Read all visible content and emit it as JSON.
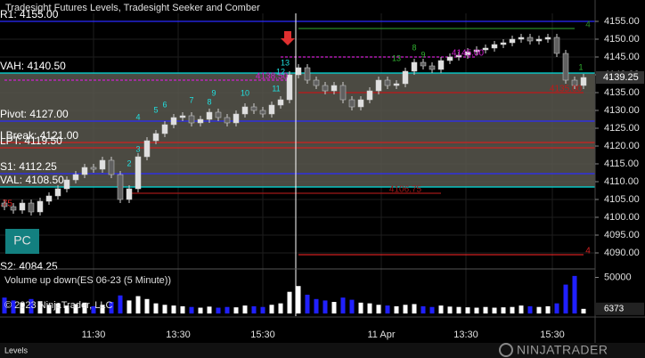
{
  "chart_data": {
    "type": "candlestick",
    "title": "Tradesight Futures Levels, Tradesight Seeker and Comber",
    "open": [
      4104,
      4103,
      4102,
      4104,
      4101.5,
      4104.5,
      4106,
      4108,
      4110.5,
      4112,
      4114,
      4113.5,
      4116,
      4112,
      4105,
      4108,
      4117,
      4121.5,
      4123.5,
      4126,
      4128,
      4128.5,
      4126.5,
      4127.5,
      4129.5,
      4128,
      4126.5,
      4129,
      4131,
      4130,
      4129,
      4131.5,
      4133,
      4140,
      4142,
      4138.5,
      4137,
      4135.5,
      4137,
      4133,
      4131,
      4133,
      4135.5,
      4138.5,
      4137,
      4137.5,
      4141,
      4143.5,
      4142.5,
      4141.5,
      4144,
      4145,
      4145.5,
      4146.5,
      4147,
      4147.5,
      4148.5,
      4149,
      4150,
      4150.5,
      4149.5,
      4150,
      4150.5,
      4146,
      4138.5,
      4137
    ],
    "high": [
      4105,
      4104,
      4105,
      4105,
      4105.5,
      4107,
      4109,
      4111.5,
      4113,
      4115,
      4115,
      4117,
      4117,
      4113,
      4109,
      4118,
      4122.5,
      4124.5,
      4127,
      4129,
      4129.5,
      4129.5,
      4128.5,
      4130.5,
      4130.5,
      4129,
      4130,
      4132,
      4132,
      4131,
      4132.5,
      4134,
      4141,
      4143,
      4143,
      4139.5,
      4138,
      4138,
      4138,
      4134,
      4134,
      4136.5,
      4139.5,
      4139.5,
      4138.5,
      4142,
      4144.5,
      4144.5,
      4143.5,
      4145,
      4146,
      4146.5,
      4147.5,
      4148,
      4148.5,
      4149.5,
      4150,
      4151,
      4151.5,
      4151.5,
      4151,
      4151.5,
      4151.5,
      4147,
      4139.5,
      4140.25
    ],
    "low": [
      4102,
      4101,
      4101,
      4100.5,
      4100.5,
      4103.5,
      4105,
      4107,
      4109.5,
      4111,
      4112.5,
      4112.5,
      4111,
      4104,
      4104,
      4107,
      4116,
      4120.5,
      4122.5,
      4125,
      4127,
      4125.5,
      4125.5,
      4126.5,
      4127,
      4125.5,
      4125.5,
      4128,
      4129,
      4128,
      4128,
      4130.5,
      4132,
      4139,
      4137.5,
      4136,
      4134.5,
      4134.5,
      4132,
      4130,
      4130,
      4132,
      4134.5,
      4136,
      4136,
      4136.5,
      4140,
      4141.5,
      4140.5,
      4140.5,
      4143,
      4144,
      4144.5,
      4145.5,
      4146,
      4146.5,
      4147.5,
      4148,
      4149,
      4148.5,
      4148.5,
      4149,
      4145,
      4137.5,
      4136,
      4136
    ],
    "close": [
      4103,
      4102,
      4104,
      4101.5,
      4104.5,
      4106,
      4108,
      4110.5,
      4112,
      4114,
      4113.5,
      4116,
      4112,
      4105,
      4108,
      4117,
      4121.5,
      4123.5,
      4126,
      4128,
      4128.5,
      4126.5,
      4127.5,
      4129.5,
      4128,
      4126.5,
      4129,
      4131,
      4130,
      4129,
      4131.5,
      4133,
      4140,
      4142,
      4138.5,
      4137,
      4135.5,
      4137,
      4133,
      4131,
      4133,
      4135.5,
      4138.5,
      4137,
      4137.5,
      4141,
      4143.5,
      4142.5,
      4141.5,
      4144,
      4145,
      4145.5,
      4146.5,
      4147,
      4147.5,
      4148.5,
      4149,
      4150,
      4150.5,
      4149.5,
      4150,
      4150.5,
      4146,
      4138.5,
      4137,
      4139.25
    ],
    "volume": [
      22000,
      18000,
      15000,
      20000,
      17000,
      12000,
      14000,
      11000,
      13000,
      15000,
      10000,
      12000,
      16000,
      25000,
      18000,
      24000,
      20000,
      14000,
      12000,
      11000,
      10000,
      9000,
      8000,
      9500,
      8000,
      9000,
      8500,
      11000,
      10000,
      9000,
      12000,
      14000,
      30000,
      38000,
      26000,
      20000,
      18000,
      16000,
      22000,
      19000,
      15000,
      14000,
      12000,
      11000,
      10000,
      12000,
      13000,
      10000,
      9000,
      11000,
      9500,
      9000,
      8500,
      8000,
      9000,
      8000,
      8500,
      9000,
      11000,
      10000,
      9000,
      10000,
      14000,
      40000,
      52000,
      6373
    ],
    "up_color": "#e0e0e0",
    "down_color": "#606060",
    "volume_up_color": "#ffffff",
    "volume_down_color": "#2020ff",
    "ylim": [
      4086,
      4157.25
    ],
    "yticks": [
      {
        "value": 4155,
        "label": "4155.00"
      },
      {
        "value": 4150,
        "label": "4150.00"
      },
      {
        "value": 4145,
        "label": "4145.00"
      },
      {
        "value": 4140,
        "label": "4140.00"
      },
      {
        "value": 4135,
        "label": "4135.00"
      },
      {
        "value": 4130,
        "label": "4130.00"
      },
      {
        "value": 4125,
        "label": "4125.00"
      },
      {
        "value": 4120,
        "label": "4120.00"
      },
      {
        "value": 4115,
        "label": "4115.00"
      },
      {
        "value": 4110,
        "label": "4110.00"
      },
      {
        "value": 4105,
        "label": "4105.00"
      },
      {
        "value": 4100,
        "label": "4100.00"
      },
      {
        "value": 4095,
        "label": "4095.00"
      },
      {
        "value": 4090,
        "label": "4090.00"
      }
    ],
    "volume_title": "Volume up down(ES 06-23 (5 Minute))",
    "volume_ylim": [
      0,
      58000
    ],
    "volume_yticks": [
      50000
    ],
    "time_ticks": [
      {
        "label": "11:30",
        "bar": 10
      },
      {
        "label": "13:30",
        "bar": 19.5
      },
      {
        "label": "15:30",
        "bar": 29
      },
      {
        "label": "11 Apr",
        "bar": 42.3
      },
      {
        "label": "13:30",
        "bar": 51.8
      },
      {
        "label": "15:30",
        "bar": 61.5
      }
    ],
    "grid": true,
    "levels": [
      {
        "label": "R1: 4155.00",
        "price": 4155,
        "color": "#2a2aff"
      },
      {
        "label": "VAH: 4140.50",
        "price": 4140.5,
        "color": "#00e0e0"
      },
      {
        "label": "Pivot: 4127.00",
        "price": 4127,
        "color": "#2a2aff"
      },
      {
        "label": "LBreak: 4121.00",
        "price": 4121,
        "color": "#d02020"
      },
      {
        "label": "LPT: 4119.50",
        "price": 4119.5,
        "color": "#d02020"
      },
      {
        "label": "S1: 4112.25",
        "price": 4112.25,
        "color": "#2a2aff"
      },
      {
        "label": "VAL: 4108.50",
        "price": 4108.5,
        "color": "#00e0e0"
      },
      {
        "label": "S2: 4084.25",
        "price": 4084.25,
        "color": "#2a2aff"
      }
    ],
    "value_area": {
      "from_level": 1,
      "to_level": 6,
      "color": "#58574e"
    },
    "segments": [
      {
        "price": 4138.5,
        "from": 0,
        "to": 32,
        "color": "#d020d0",
        "dashed": true,
        "label": "4138.50",
        "label_bar": 30
      },
      {
        "price": 4145,
        "from": 31,
        "to": 53,
        "color": "#d020d0",
        "dashed": true,
        "label": "4145.00",
        "label_bar": 52
      },
      {
        "price": 4106.75,
        "from": 14,
        "to": 49,
        "color": "#a01818",
        "dashed": false,
        "label": "4106.75",
        "label_bar": 45
      },
      {
        "price": 4135,
        "from": 33,
        "to": 65,
        "color": "#c01818",
        "dashed": false,
        "label": "4135.00",
        "label_bar": 63
      },
      {
        "price": 4153,
        "from": 33,
        "to": 64,
        "color": "#2a8a2a",
        "dashed": false,
        "label": "4",
        "label_bar": 65.5
      },
      {
        "price": 4089.5,
        "from": 33,
        "to": 65,
        "color": "#d02020",
        "dashed": false,
        "label": "4",
        "label_bar": 65.5
      }
    ],
    "left_note": {
      "label": ".75",
      "price": 4103.75,
      "color": "#e02020"
    },
    "counts": [
      {
        "text": "2",
        "bar": 14,
        "price": 4115,
        "color": "#20e0e0"
      },
      {
        "text": "3",
        "bar": 15,
        "price": 4119,
        "color": "#20e0e0"
      },
      {
        "text": "4",
        "bar": 15,
        "price": 4128,
        "color": "#20e0e0"
      },
      {
        "text": "5",
        "bar": 17,
        "price": 4130,
        "color": "#20e0e0"
      },
      {
        "text": "6",
        "bar": 18,
        "price": 4131.5,
        "color": "#20e0e0"
      },
      {
        "text": "7",
        "bar": 21,
        "price": 4132.75,
        "color": "#20e0e0"
      },
      {
        "text": "8",
        "bar": 23,
        "price": 4132.25,
        "color": "#20e0e0"
      },
      {
        "text": "9",
        "bar": 23.5,
        "price": 4134.75,
        "color": "#20e0e0"
      },
      {
        "text": "10",
        "bar": 27,
        "price": 4134.75,
        "color": "#20e0e0"
      },
      {
        "text": "11",
        "bar": 30.5,
        "price": 4136,
        "color": "#20e0e0"
      },
      {
        "text": "12",
        "bar": 31,
        "price": 4140.75,
        "color": "#20e0e0"
      },
      {
        "text": "13",
        "bar": 31.5,
        "price": 4143.25,
        "color": "#20e0e0"
      },
      {
        "text": "13",
        "bar": 44,
        "price": 4144.5,
        "color": "#30b030"
      },
      {
        "text": "8",
        "bar": 46,
        "price": 4147.5,
        "color": "#30b030"
      },
      {
        "text": "9",
        "bar": 47,
        "price": 4145.5,
        "color": "#30b030"
      },
      {
        "text": "1",
        "bar": 64.7,
        "price": 4142,
        "color": "#30b030"
      }
    ],
    "button": "PC",
    "copyright": "© 2023 NinjaTrader, LLC",
    "tab": "Levels",
    "brand": "NINJATRADER"
  }
}
